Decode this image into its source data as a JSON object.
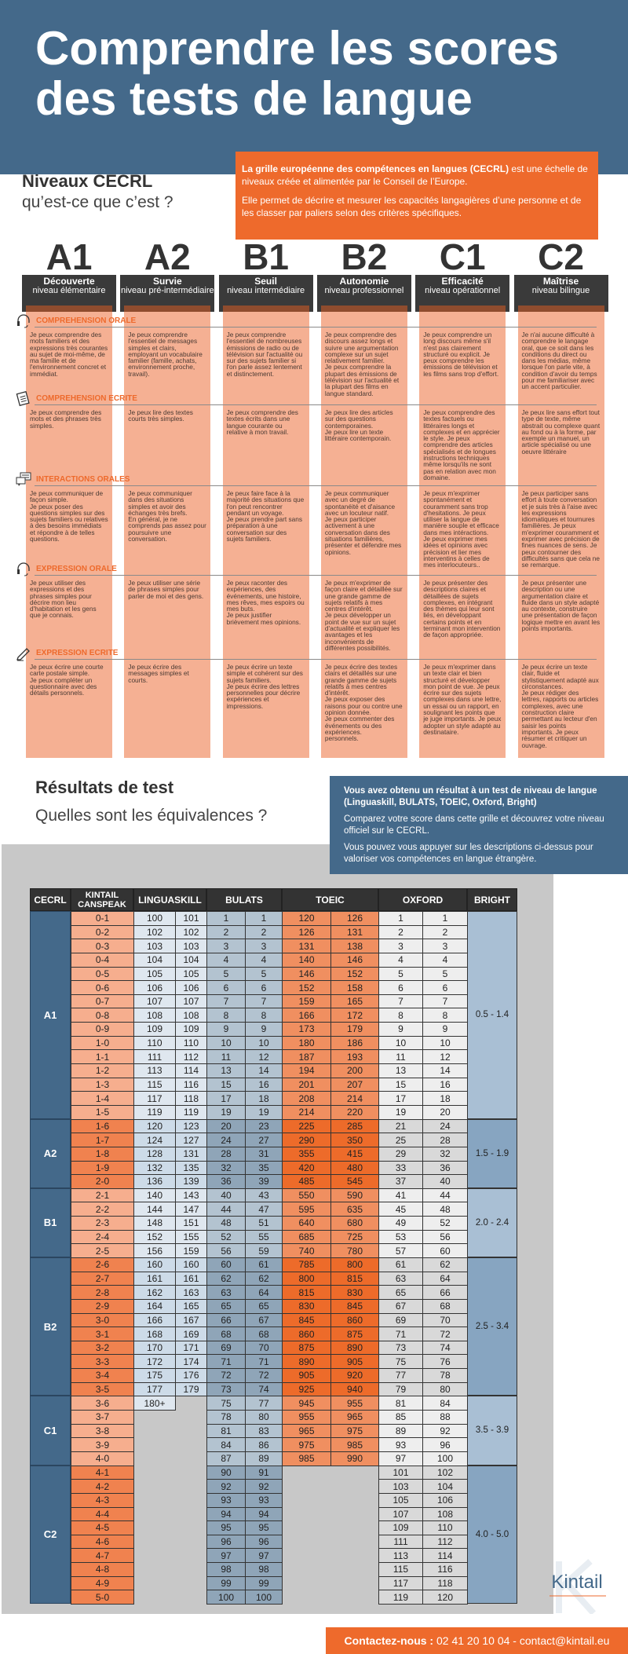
{
  "header": {
    "title": "Comprendre les scores des tests de langue"
  },
  "intro": {
    "heading": "Niveaux CECRL",
    "subheading": "qu’est-ce que c’est ?",
    "box_bold": "La grille européenne des compétences en langues (CECRL)",
    "box_text1": " est une échelle de niveaux créée et alimentée par le Conseil de l’Europe.",
    "box_text2": "Elle permet de décrire et mesurer les capacités langagières d’une personne et de les classer par paliers selon des critères spécifiques."
  },
  "levels": [
    {
      "code": "A1",
      "name": "Découverte",
      "sub": "niveau élémentaire"
    },
    {
      "code": "A2",
      "name": "Survie",
      "sub": "niveau pré-intermédiaire"
    },
    {
      "code": "B1",
      "name": "Seuil",
      "sub": "niveau intermédiaire"
    },
    {
      "code": "B2",
      "name": "Autonomie",
      "sub": "niveau professionnel"
    },
    {
      "code": "C1",
      "name": "Efficacité",
      "sub": "niveau opérationnel"
    },
    {
      "code": "C2",
      "name": "Maîtrise",
      "sub": "niveau bilingue"
    }
  ],
  "sections": [
    {
      "label": "COMPREHENSION ORALE",
      "icon": "headset-icon",
      "cells": [
        "Je peux comprendre des mots familiers et des expressions très courantes au sujet de moi-même, de ma famille et de l'environnement concret et immédiat.",
        "Je peux comprendre l'essentiel de messages simples et clairs, employant un vocabulaire familier (famille, achats, environnement proche, travail).",
        "Je peux comprendre l'essentiel de nombreuses émissions de radio ou de télévision sur l'actualité ou sur des sujets familier si l'on parle assez lentement et distinctement.",
        "Je peux comprendre des discours assez longs et suivre une argumentation complexe sur un sujet relativement familier.\nJe peux comprendre la plupart des émissions de télévision sur l'actualité et la plupart des films en langue standard.",
        "Je peux comprendre un long discours même s'il n'est pas clairement structuré ou explicit. Je peux comprendre les émissions de télévision et les films sans trop d'effort.",
        "Je n'ai aucune difficulté à comprendre le langage oral, que ce soit dans les conditions du direct ou dans les médias, même lorsque l'on parle vite, à condition d'avoir du temps pour me familiariser avec un accent particulier."
      ]
    },
    {
      "label": "COMPREHENSION ECRITE",
      "icon": "document-icon",
      "cells": [
        "Je peux comprendre des mots et des phrases très simples.",
        "Je peux lire des textes courts très simples.",
        "Je peux comprendre des textes écrits dans une langue courante ou relative à mon travail.",
        "Je peux lire des articles sur des questions contemporaines.\nJe peux lire un texte littéraire contemporain.",
        "Je peux comprendre des textes factuels ou littéraires longs et complexes et en apprécier le style. Je peux comprendre des articles spécialisés et de longues instructions techniques même lorsqu'ils ne sont pas en relation avec mon domaine.",
        "Je peux lire sans effort tout type de texte, même abstrait ou complexe quant au fond ou à la forme, par exemple un manuel, un article spécialisé ou une oeuvre littéraire"
      ]
    },
    {
      "label": "INTERACTIONS ORALES",
      "icon": "chat-bubbles-icon",
      "cells": [
        "Je peux communiquer de façon simple.\nJe peux poser des questions simples sur des sujets familiers ou relatives à des besoins immédiats et répondre à de telles questions.",
        "Je peux communiquer dans des situations simples et avoir des échanges très brefs.\nEn général, je ne comprends pas assez pour poursuivre une conversation.",
        "Je peux faire face à la majorité des situations que l'on peut rencontrer pendant un voyage.\nJe peux prendre part sans préparation à une conversation sur des sujets familiers.",
        "Je peux communiquer avec un degré de spontanéité et d'aisance avec un locuteur natif.\nJe peux participer activement à une conversation dans des situations familières, présenter et défendre mes opinions.",
        "Je peux m'exprimer spontanément et couramment sans trop d'hesitations. Je peux utiliser la langue de manière souple et efficace dans mes intéractions.\nJe peux exprimer mes idées et opinions avec précision et lier mes interventins à celles de mes interlocuteurs..",
        "Je peux participer sans effort à toute conversation et je suis très à l'aise avec les expressions idiomatiques et tournures familières. Je peux m'exprimer couramment et exprimer avec précision de fines nuances de sens. Je peux contourner des difficultés sans que cela ne se remarque."
      ]
    },
    {
      "label": "EXPRESSION ORALE",
      "icon": "headset-icon",
      "cells": [
        "Je peux utiliser des expressions et des phrases simples pour décrire mon lieu d'habitation et les gens que je connais.",
        "Je peux utiliser une série de phrases simples pour parler de moi et des gens.",
        "Je peux raconter des expériences, des événements, une histoire, mes rêves, mes espoirs ou mes buts.\nJe peux justifier brièvement mes opinions.",
        "Je peux m'exprimer de façon claire et détaillée sur une grande gamme de sujets relatifs à mes centres d'intérêt.\nJe peux développer un point de vue sur un sujet d'actualité et expliquer les avantages et les inconvénients de différentes possibilités.",
        "Je peux présenter des descriptions claires et détaillées de sujets complexes, en intégrant des thèmes qui leur sont liés, en développant certains points et en terminant mon intervention de façon appropriée.",
        "Je peux présenter une description ou une argumentation claire et fluide dans un style adapté au contexte, construire une présentation de façon logique mettre en avant les points importants."
      ]
    },
    {
      "label": "EXPRESSION ECRITE",
      "icon": "pencil-icon",
      "cells": [
        "Je peux écrire une courte carte postale simple.\nJe peux compléter un questionnaire avec des détails personnels.",
        "Je peux écrire des messages simples et courts.",
        "Je peux écrire un texte simple et cohérent sur des sujets familiers.\nJe peux écrire des lettres personnelles pour décrire expériences et impressions.",
        "Je peux écrire des textes clairs et détaillés sur une grande gamme de sujets relatifs à mes centres d'intérêt.\nJe peux exposer des raisons pour ou contre une opinion donnée.\nJe peux commenter des événements ou des expériences.\npersonnels.",
        "Je peux m'exprimer dans un texte clair et bien structuré et développer mon point de vue. Je peux écrire sur des sujets complexes dans une lettre, un essai ou un rapport, en soulignant les points que je juge importants. Je peux adopter un style adapté au destinataire.",
        "Je peux écrire un texte clair, fluide et stylistiquement adapté aux circonstances.\nJe peux rédiger des lettres, rapports ou articles complexes, avec une construction claire permettant au lecteur d'en saisir les points importants. Je peux résumer et critiquer un ouvrage."
      ]
    }
  ],
  "results": {
    "heading": "Résultats de test",
    "subheading": "Quelles sont les équivalences ?",
    "box_bold": "Vous avez obtenu un résultat à un test de niveau de langue (Linguaskill, BULATS, TOEIC, Oxford, Bright)",
    "box_text1": "Comparez votre score dans cette grille et découvrez votre niveau officiel sur le CECRL.",
    "box_text2": "Vous pouvez vous appuyer sur les descriptions ci-dessus pour valoriser vos compétences en langue étrangère."
  },
  "table": {
    "headers": [
      "CECRL",
      "KINTAIL CANSPEAK",
      "LINGUASKILL",
      "BULATS",
      "TOEIC",
      "OXFORD",
      "BRIGHT"
    ],
    "groups": [
      {
        "level": "A1",
        "bright": "0.5 - 1.4",
        "rows": [
          [
            "0-1",
            "100",
            "101",
            "1",
            "1",
            "120",
            "126",
            "1",
            "1"
          ],
          [
            "0-2",
            "102",
            "102",
            "2",
            "2",
            "126",
            "131",
            "2",
            "2"
          ],
          [
            "0-3",
            "103",
            "103",
            "3",
            "3",
            "131",
            "138",
            "3",
            "3"
          ],
          [
            "0-4",
            "104",
            "104",
            "4",
            "4",
            "140",
            "146",
            "4",
            "4"
          ],
          [
            "0-5",
            "105",
            "105",
            "5",
            "5",
            "146",
            "152",
            "5",
            "5"
          ],
          [
            "0-6",
            "106",
            "106",
            "6",
            "6",
            "152",
            "158",
            "6",
            "6"
          ],
          [
            "0-7",
            "107",
            "107",
            "7",
            "7",
            "159",
            "165",
            "7",
            "7"
          ],
          [
            "0-8",
            "108",
            "108",
            "8",
            "8",
            "166",
            "172",
            "8",
            "8"
          ],
          [
            "0-9",
            "109",
            "109",
            "9",
            "9",
            "173",
            "179",
            "9",
            "9"
          ],
          [
            "1-0",
            "110",
            "110",
            "10",
            "10",
            "180",
            "186",
            "10",
            "10"
          ],
          [
            "1-1",
            "111",
            "112",
            "11",
            "12",
            "187",
            "193",
            "11",
            "12"
          ],
          [
            "1-2",
            "113",
            "114",
            "13",
            "14",
            "194",
            "200",
            "13",
            "14"
          ],
          [
            "1-3",
            "115",
            "116",
            "15",
            "16",
            "201",
            "207",
            "15",
            "16"
          ],
          [
            "1-4",
            "117",
            "118",
            "17",
            "18",
            "208",
            "214",
            "17",
            "18"
          ],
          [
            "1-5",
            "119",
            "119",
            "19",
            "19",
            "214",
            "220",
            "19",
            "20"
          ]
        ]
      },
      {
        "level": "A2",
        "bright": "1.5 - 1.9",
        "rows": [
          [
            "1-6",
            "120",
            "123",
            "20",
            "23",
            "225",
            "285",
            "21",
            "24"
          ],
          [
            "1-7",
            "124",
            "127",
            "24",
            "27",
            "290",
            "350",
            "25",
            "28"
          ],
          [
            "1-8",
            "128",
            "131",
            "28",
            "31",
            "355",
            "415",
            "29",
            "32"
          ],
          [
            "1-9",
            "132",
            "135",
            "32",
            "35",
            "420",
            "480",
            "33",
            "36"
          ],
          [
            "2-0",
            "136",
            "139",
            "36",
            "39",
            "485",
            "545",
            "37",
            "40"
          ]
        ]
      },
      {
        "level": "B1",
        "bright": "2.0 - 2.4",
        "rows": [
          [
            "2-1",
            "140",
            "143",
            "40",
            "43",
            "550",
            "590",
            "41",
            "44"
          ],
          [
            "2-2",
            "144",
            "147",
            "44",
            "47",
            "595",
            "635",
            "45",
            "48"
          ],
          [
            "2-3",
            "148",
            "151",
            "48",
            "51",
            "640",
            "680",
            "49",
            "52"
          ],
          [
            "2-4",
            "152",
            "155",
            "52",
            "55",
            "685",
            "725",
            "53",
            "56"
          ],
          [
            "2-5",
            "156",
            "159",
            "56",
            "59",
            "740",
            "780",
            "57",
            "60"
          ]
        ]
      },
      {
        "level": "B2",
        "bright": "2.5 - 3.4",
        "rows": [
          [
            "2-6",
            "160",
            "160",
            "60",
            "61",
            "785",
            "800",
            "61",
            "62"
          ],
          [
            "2-7",
            "161",
            "161",
            "62",
            "62",
            "800",
            "815",
            "63",
            "64"
          ],
          [
            "2-8",
            "162",
            "163",
            "63",
            "64",
            "815",
            "830",
            "65",
            "66"
          ],
          [
            "2-9",
            "164",
            "165",
            "65",
            "65",
            "830",
            "845",
            "67",
            "68"
          ],
          [
            "3-0",
            "166",
            "167",
            "66",
            "67",
            "845",
            "860",
            "69",
            "70"
          ],
          [
            "3-1",
            "168",
            "169",
            "68",
            "68",
            "860",
            "875",
            "71",
            "72"
          ],
          [
            "3-2",
            "170",
            "171",
            "69",
            "70",
            "875",
            "890",
            "73",
            "74"
          ],
          [
            "3-3",
            "172",
            "174",
            "71",
            "71",
            "890",
            "905",
            "75",
            "76"
          ],
          [
            "3-4",
            "175",
            "176",
            "72",
            "72",
            "905",
            "920",
            "77",
            "78"
          ],
          [
            "3-5",
            "177",
            "179",
            "73",
            "74",
            "925",
            "940",
            "79",
            "80"
          ]
        ]
      },
      {
        "level": "C1",
        "bright": "3.5 - 3.9",
        "rows": [
          [
            "3-6",
            "180+",
            null,
            "75",
            "77",
            "945",
            "955",
            "81",
            "84"
          ],
          [
            "3-7",
            null,
            null,
            "78",
            "80",
            "955",
            "965",
            "85",
            "88"
          ],
          [
            "3-8",
            null,
            null,
            "81",
            "83",
            "965",
            "975",
            "89",
            "92"
          ],
          [
            "3-9",
            null,
            null,
            "84",
            "86",
            "975",
            "985",
            "93",
            "96"
          ],
          [
            "4-0",
            null,
            null,
            "87",
            "89",
            "985",
            "990",
            "97",
            "100"
          ]
        ]
      },
      {
        "level": "C2",
        "bright": "4.0 - 5.0",
        "rows": [
          [
            "4-1",
            null,
            null,
            "90",
            "91",
            null,
            null,
            "101",
            "102"
          ],
          [
            "4-2",
            null,
            null,
            "92",
            "92",
            null,
            null,
            "103",
            "104"
          ],
          [
            "4-3",
            null,
            null,
            "93",
            "93",
            null,
            null,
            "105",
            "106"
          ],
          [
            "4-4",
            null,
            null,
            "94",
            "94",
            null,
            null,
            "107",
            "108"
          ],
          [
            "4-5",
            null,
            null,
            "95",
            "95",
            null,
            null,
            "109",
            "110"
          ],
          [
            "4-6",
            null,
            null,
            "96",
            "96",
            null,
            null,
            "111",
            "112"
          ],
          [
            "4-7",
            null,
            null,
            "97",
            "97",
            null,
            null,
            "113",
            "114"
          ],
          [
            "4-8",
            null,
            null,
            "98",
            "98",
            null,
            null,
            "115",
            "116"
          ],
          [
            "4-9",
            null,
            null,
            "99",
            "99",
            null,
            null,
            "117",
            "118"
          ],
          [
            "5-0",
            null,
            null,
            "100",
            "100",
            null,
            null,
            "119",
            "120"
          ]
        ]
      }
    ]
  },
  "logo": {
    "text": "Kintail"
  },
  "footer": {
    "contact_label": "Contactez-nous :",
    "phone": "02 41 20 10 04",
    "email": "contact@kintail.eu"
  },
  "colors": {
    "blue": "#44698a",
    "orange": "#ee6a2c",
    "salmon": "#f5b093",
    "dark": "#3a3a3a"
  }
}
